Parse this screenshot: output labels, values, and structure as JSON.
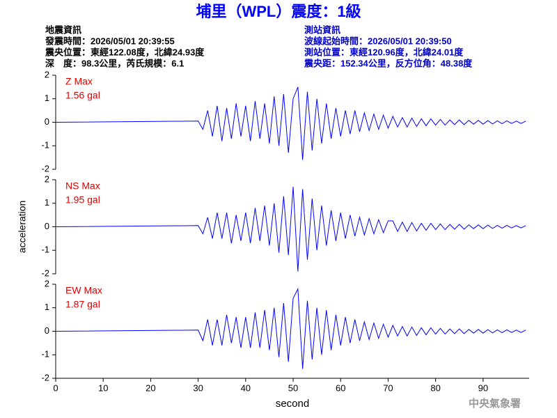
{
  "header": {
    "title": "埔里（WPL）震度：1級",
    "left": [
      "地震資訊",
      "發震時間：2026/05/01 20:39:55",
      "震央位置：東經122.08度，北緯24.93度",
      "深　度：98.3公里，芮氏規模：6.1"
    ],
    "right": [
      "測站資訊",
      "波線起始時間：2026/05/01 20:39:50",
      "測站位置：東經120.96度，北緯24.01度",
      "震央距：152.34公里，反方位角：48.38度"
    ],
    "footer": "中央氣象署"
  },
  "chart_data": [
    {
      "type": "line",
      "label": "Z Max",
      "max_label": "1.56 gal",
      "x": [
        0,
        30,
        31,
        32,
        33,
        34,
        35,
        36,
        37,
        38,
        39,
        40,
        41,
        42,
        43,
        44,
        45,
        46,
        47,
        48,
        49,
        50,
        51,
        52,
        53,
        54,
        55,
        56,
        57,
        58,
        59,
        60,
        61,
        62,
        63,
        64,
        65,
        66,
        67,
        68,
        69,
        70,
        71,
        72,
        73,
        74,
        75,
        76,
        77,
        78,
        79,
        80,
        81,
        82,
        83,
        84,
        85,
        86,
        87,
        88,
        89,
        90,
        91,
        92,
        93,
        94,
        95,
        96,
        97,
        98,
        99
      ],
      "series": [
        {
          "color": "#0000ff",
          "values": [
            0,
            0.05,
            -0.3,
            0.5,
            -0.6,
            0.7,
            -0.8,
            0.6,
            -0.7,
            0.8,
            -0.6,
            0.7,
            -0.8,
            0.9,
            -0.7,
            0.8,
            -0.9,
            1.1,
            -1.0,
            1.2,
            -1.3,
            1.0,
            1.5,
            -1.6,
            1.3,
            -1.2,
            1.0,
            -0.9,
            0.8,
            -0.7,
            0.6,
            -0.6,
            0.5,
            -0.5,
            0.5,
            -0.4,
            0.4,
            -0.35,
            0.35,
            -0.3,
            0.3,
            -0.25,
            0.25,
            -0.2,
            0.2,
            -0.2,
            0.18,
            -0.18,
            0.15,
            -0.15,
            0.15,
            -0.12,
            0.12,
            -0.12,
            0.1,
            -0.1,
            0.1,
            -0.1,
            0.08,
            -0.08,
            0.08,
            -0.08,
            0.07,
            -0.07,
            0.06,
            -0.06,
            0.06,
            -0.05,
            0.05,
            -0.05,
            0.05
          ]
        }
      ],
      "xlim": [
        0,
        99.7
      ],
      "ylim": [
        -2,
        2
      ],
      "yticks": [
        2,
        1,
        0,
        -1,
        -2
      ]
    },
    {
      "type": "line",
      "label": "NS Max",
      "max_label": "1.95 gal",
      "y_label": "acceleration",
      "x": [
        0,
        30,
        31,
        32,
        33,
        34,
        35,
        36,
        37,
        38,
        39,
        40,
        41,
        42,
        43,
        44,
        45,
        46,
        47,
        48,
        49,
        50,
        51,
        52,
        53,
        54,
        55,
        56,
        57,
        58,
        59,
        60,
        61,
        62,
        63,
        64,
        65,
        66,
        67,
        68,
        69,
        70,
        71,
        72,
        73,
        74,
        75,
        76,
        77,
        78,
        79,
        80,
        81,
        82,
        83,
        84,
        85,
        86,
        87,
        88,
        89,
        90,
        91,
        92,
        93,
        94,
        95,
        96,
        97,
        98,
        99
      ],
      "series": [
        {
          "color": "#0000ff",
          "values": [
            0,
            0.05,
            -0.3,
            0.4,
            -0.5,
            0.6,
            -0.5,
            0.6,
            -0.7,
            0.5,
            -0.6,
            0.6,
            -0.7,
            0.8,
            -0.6,
            0.9,
            -0.8,
            1.0,
            -1.1,
            1.3,
            -1.2,
            1.7,
            -1.9,
            1.6,
            -1.4,
            1.2,
            -1.0,
            0.9,
            -0.8,
            0.7,
            -0.6,
            0.6,
            -0.5,
            0.5,
            -0.4,
            0.4,
            -0.35,
            0.35,
            -0.3,
            0.3,
            -0.25,
            0.25,
            0.25,
            -0.2,
            0.2,
            -0.2,
            0.18,
            -0.18,
            0.15,
            -0.15,
            0.15,
            -0.12,
            0.12,
            -0.12,
            0.1,
            -0.1,
            0.1,
            -0.1,
            0.08,
            -0.08,
            0.08,
            -0.08,
            0.07,
            -0.07,
            0.06,
            -0.06,
            0.06,
            -0.05,
            0.05,
            -0.05,
            0.05
          ]
        }
      ],
      "xlim": [
        0,
        99.7
      ],
      "ylim": [
        -2,
        2
      ],
      "yticks": [
        2,
        1,
        0,
        -1,
        -2
      ]
    },
    {
      "type": "line",
      "label": "EW Max",
      "max_label": "1.87 gal",
      "x_label": "second",
      "x": [
        0,
        30,
        31,
        32,
        33,
        34,
        35,
        36,
        37,
        38,
        39,
        40,
        41,
        42,
        43,
        44,
        45,
        46,
        47,
        48,
        49,
        50,
        51,
        52,
        53,
        54,
        55,
        56,
        57,
        58,
        59,
        60,
        61,
        62,
        63,
        64,
        65,
        66,
        67,
        68,
        69,
        70,
        71,
        72,
        73,
        74,
        75,
        76,
        77,
        78,
        79,
        80,
        81,
        82,
        83,
        84,
        85,
        86,
        87,
        88,
        89,
        90,
        91,
        92,
        93,
        94,
        95,
        96,
        97,
        98,
        99
      ],
      "series": [
        {
          "color": "#0000ff",
          "values": [
            0,
            0.05,
            -0.4,
            0.5,
            -0.6,
            0.5,
            -0.6,
            0.7,
            -0.5,
            0.6,
            -0.7,
            0.6,
            -0.7,
            0.8,
            -0.7,
            0.9,
            -0.8,
            1.0,
            -1.1,
            1.2,
            -1.3,
            1.4,
            1.8,
            -1.6,
            1.3,
            -1.2,
            1.0,
            -1.0,
            0.9,
            -0.8,
            0.7,
            -0.6,
            0.6,
            -0.5,
            0.5,
            -0.4,
            0.4,
            -0.35,
            0.35,
            -0.3,
            0.3,
            -0.25,
            0.25,
            -0.2,
            0.2,
            -0.2,
            0.18,
            -0.18,
            0.15,
            -0.15,
            0.15,
            -0.12,
            0.12,
            -0.12,
            0.1,
            -0.1,
            0.1,
            -0.1,
            0.08,
            -0.08,
            0.08,
            -0.08,
            0.07,
            -0.07,
            0.06,
            -0.06,
            0.06,
            -0.05,
            0.05,
            -0.05,
            0.05
          ]
        }
      ],
      "xlim": [
        0,
        99.7
      ],
      "ylim": [
        -2,
        2
      ],
      "yticks": [
        2,
        1,
        0,
        -1,
        -2
      ],
      "xticks": [
        0,
        10,
        20,
        30,
        40,
        50,
        60,
        70,
        80,
        90
      ]
    }
  ]
}
